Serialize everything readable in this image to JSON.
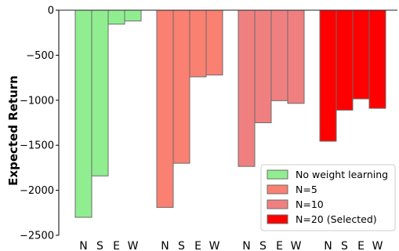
{
  "chart_data": {
    "type": "bar",
    "title": "",
    "xlabel": "",
    "ylabel": "Expected Return",
    "ylim": [
      -2500,
      0
    ],
    "yticks": [
      0,
      -500,
      -1000,
      -1500,
      -2000,
      -2500
    ],
    "ytick_labels": [
      "0",
      "−500",
      "−1000",
      "−1500",
      "−2000",
      "−2500"
    ],
    "categories": [
      "N",
      "S",
      "E",
      "W"
    ],
    "grid": false,
    "legend_position": "bottom-right",
    "series": [
      {
        "name": "No weight learning",
        "color": "#90ee90",
        "values": [
          -2300,
          -1840,
          -155,
          -120
        ]
      },
      {
        "name": "N=5",
        "color": "#fa8072",
        "values": [
          -2190,
          -1700,
          -740,
          -720
        ]
      },
      {
        "name": "N=10",
        "color": "#f08080",
        "values": [
          -1735,
          -1250,
          -1005,
          -1035
        ]
      },
      {
        "name": "N=20 (Selected)",
        "color": "#ff0000",
        "values": [
          -1455,
          -1110,
          -985,
          -1090
        ]
      }
    ]
  }
}
